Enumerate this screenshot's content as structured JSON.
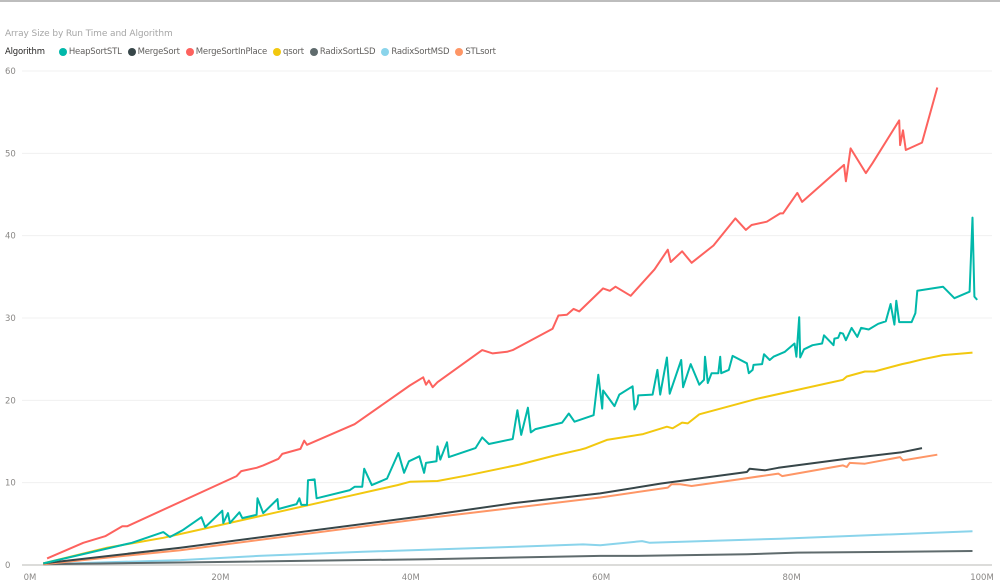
{
  "chart_data": {
    "type": "line",
    "title": "Array Size by Run Time and Algorithm",
    "legend_title": "Algorithm",
    "legend_position": "top-left",
    "xlabel": "",
    "ylabel": "",
    "x_unit": "M",
    "xlim": [
      0,
      100
    ],
    "ylim": [
      0,
      60
    ],
    "x_ticks": [
      "0M",
      "20M",
      "40M",
      "60M",
      "80M",
      "100M"
    ],
    "y_ticks": [
      "0",
      "10",
      "20",
      "30",
      "40",
      "50",
      "60"
    ],
    "grid": true,
    "series": [
      {
        "name": "HeapSortSTL",
        "color": "#01B8AA",
        "points": [
          [
            1.4,
            0.2
          ],
          [
            10.7,
            2.7
          ],
          [
            14,
            4
          ],
          [
            14.7,
            3.4
          ],
          [
            16,
            4.2
          ],
          [
            18,
            5.8
          ],
          [
            18.4,
            4.6
          ],
          [
            20.2,
            6.6
          ],
          [
            20.3,
            5.1
          ],
          [
            20.8,
            6.3
          ],
          [
            21,
            5.1
          ],
          [
            22,
            6.4
          ],
          [
            22.3,
            5.7
          ],
          [
            23.8,
            6.1
          ],
          [
            23.9,
            8.1
          ],
          [
            24.5,
            6.3
          ],
          [
            26,
            8
          ],
          [
            26.1,
            6.8
          ],
          [
            28,
            7.4
          ],
          [
            28.3,
            8.1
          ],
          [
            28.5,
            7.3
          ],
          [
            29.1,
            7.3
          ],
          [
            29.2,
            10.3
          ],
          [
            29.9,
            10.4
          ],
          [
            30.1,
            8.1
          ],
          [
            33.6,
            9.1
          ],
          [
            34.1,
            9.5
          ],
          [
            34.9,
            9.5
          ],
          [
            35.1,
            11.7
          ],
          [
            35.9,
            9.7
          ],
          [
            37.5,
            10.5
          ],
          [
            38.7,
            13.6
          ],
          [
            39.3,
            11.2
          ],
          [
            39.8,
            12.6
          ],
          [
            40.9,
            13.2
          ],
          [
            41.4,
            11.2
          ],
          [
            41.6,
            12.4
          ],
          [
            42.7,
            12.6
          ],
          [
            42.8,
            14.4
          ],
          [
            43.1,
            12.8
          ],
          [
            43.8,
            14.9
          ],
          [
            44,
            13.1
          ],
          [
            46.8,
            14.2
          ],
          [
            47.5,
            15.5
          ],
          [
            48.2,
            14.7
          ],
          [
            50.7,
            15.3
          ],
          [
            51.2,
            18.8
          ],
          [
            51.6,
            15.8
          ],
          [
            52.3,
            19.1
          ],
          [
            52.6,
            16.1
          ],
          [
            53.1,
            16.5
          ],
          [
            55.9,
            17.3
          ],
          [
            56.6,
            18.4
          ],
          [
            57.2,
            17.4
          ],
          [
            59.2,
            18.2
          ],
          [
            59.7,
            23.1
          ],
          [
            60.1,
            19
          ],
          [
            60.2,
            21.2
          ],
          [
            61.4,
            19.3
          ],
          [
            61.9,
            20.7
          ],
          [
            63.3,
            21.7
          ],
          [
            63.5,
            18.9
          ],
          [
            63.8,
            19.6
          ],
          [
            63.9,
            20.6
          ],
          [
            65.4,
            20.7
          ],
          [
            65.9,
            23.7
          ],
          [
            66.2,
            20.7
          ],
          [
            66.9,
            25.2
          ],
          [
            67.2,
            20.8
          ],
          [
            68.4,
            24.9
          ],
          [
            68.6,
            21.6
          ],
          [
            69.4,
            24.4
          ],
          [
            70.3,
            21.9
          ],
          [
            70.8,
            22.5
          ],
          [
            70.9,
            25.3
          ],
          [
            71.2,
            22.1
          ],
          [
            71.6,
            23.3
          ],
          [
            72.3,
            23.3
          ],
          [
            72.5,
            25.3
          ],
          [
            72.6,
            23.3
          ],
          [
            73.4,
            23.7
          ],
          [
            73.8,
            25.4
          ],
          [
            75.3,
            24.5
          ],
          [
            75.5,
            23.3
          ],
          [
            75.9,
            23.7
          ],
          [
            76,
            24.3
          ],
          [
            76.9,
            24.4
          ],
          [
            77.1,
            25.6
          ],
          [
            77.7,
            24.9
          ],
          [
            78.1,
            25.3
          ],
          [
            79.3,
            25.9
          ],
          [
            80.3,
            26.9
          ],
          [
            80.5,
            25.3
          ],
          [
            80.8,
            30.1
          ],
          [
            80.9,
            25.2
          ],
          [
            81.3,
            26.2
          ],
          [
            82.2,
            26.7
          ],
          [
            83.2,
            26.9
          ],
          [
            83.4,
            27.9
          ],
          [
            84.4,
            26.7
          ],
          [
            84.5,
            27.5
          ],
          [
            84.9,
            27.6
          ],
          [
            85.1,
            28.2
          ],
          [
            85.4,
            28.1
          ],
          [
            85.7,
            27.3
          ],
          [
            86.3,
            28.8
          ],
          [
            86.9,
            27.7
          ],
          [
            87.3,
            28.8
          ],
          [
            88.1,
            28.6
          ],
          [
            89.1,
            29.3
          ],
          [
            89.9,
            29.6
          ],
          [
            90.4,
            31.7
          ],
          [
            90.8,
            29.2
          ],
          [
            91,
            32.1
          ],
          [
            91.3,
            29.5
          ],
          [
            92.6,
            29.5
          ],
          [
            93,
            30.6
          ],
          [
            93.2,
            33.3
          ],
          [
            95.9,
            33.8
          ],
          [
            97.1,
            32.4
          ],
          [
            97.5,
            32.6
          ],
          [
            98.7,
            33.2
          ],
          [
            99,
            42.2
          ],
          [
            99.2,
            32.6
          ],
          [
            99.5,
            32.2
          ]
        ]
      },
      {
        "name": "MergeSort",
        "color": "#374649",
        "points": [
          [
            1.4,
            0.2
          ],
          [
            15.8,
            2.1
          ],
          [
            41.7,
            6.0
          ],
          [
            50.7,
            7.5
          ],
          [
            59.9,
            8.7
          ],
          [
            66.3,
            9.9
          ],
          [
            75.3,
            11.3
          ],
          [
            75.6,
            11.7
          ],
          [
            77.2,
            11.5
          ],
          [
            78.6,
            11.8
          ],
          [
            85.8,
            12.9
          ],
          [
            91.6,
            13.7
          ],
          [
            93.7,
            14.2
          ]
        ]
      },
      {
        "name": "MergeSortInPlace",
        "color": "#FD625E",
        "points": [
          [
            1.8,
            0.8
          ],
          [
            5.6,
            2.7
          ],
          [
            7.9,
            3.5
          ],
          [
            9.7,
            4.7
          ],
          [
            10.2,
            4.7
          ],
          [
            21.7,
            10.8
          ],
          [
            22.2,
            11.4
          ],
          [
            23.8,
            11.8
          ],
          [
            24.5,
            12.1
          ],
          [
            26.1,
            12.9
          ],
          [
            26.5,
            13.5
          ],
          [
            28.4,
            14.1
          ],
          [
            28.8,
            15.1
          ],
          [
            29.1,
            14.6
          ],
          [
            34.1,
            17.1
          ],
          [
            39.9,
            21.8
          ],
          [
            41.3,
            22.8
          ],
          [
            41.6,
            21.9
          ],
          [
            41.9,
            22.4
          ],
          [
            42.3,
            21.6
          ],
          [
            42.8,
            22.2
          ],
          [
            47.5,
            26.1
          ],
          [
            48.6,
            25.7
          ],
          [
            50.1,
            25.9
          ],
          [
            50.7,
            26.1
          ],
          [
            54.9,
            28.7
          ],
          [
            55.5,
            30.3
          ],
          [
            56.4,
            30.4
          ],
          [
            57.1,
            31.1
          ],
          [
            57.7,
            30.8
          ],
          [
            60.2,
            33.6
          ],
          [
            60.9,
            33.3
          ],
          [
            61.5,
            33.8
          ],
          [
            63.1,
            32.7
          ],
          [
            65.6,
            35.9
          ],
          [
            67,
            38.3
          ],
          [
            67.3,
            36.8
          ],
          [
            68.5,
            38.1
          ],
          [
            69.5,
            36.7
          ],
          [
            71.8,
            38.8
          ],
          [
            74.1,
            42.1
          ],
          [
            75.2,
            40.7
          ],
          [
            75.8,
            41.3
          ],
          [
            77.4,
            41.7
          ],
          [
            78.8,
            42.7
          ],
          [
            79.1,
            42.7
          ],
          [
            80.6,
            45.2
          ],
          [
            81.1,
            44.1
          ],
          [
            85.5,
            48.6
          ],
          [
            85.7,
            46.6
          ],
          [
            86.2,
            50.6
          ],
          [
            87.8,
            47.6
          ],
          [
            88.5,
            48.8
          ],
          [
            91.3,
            54.0
          ],
          [
            91.4,
            51.0
          ],
          [
            91.7,
            52.8
          ],
          [
            92,
            50.4
          ],
          [
            93.7,
            51.3
          ],
          [
            95.3,
            58.0
          ]
        ]
      },
      {
        "name": "qsort",
        "color": "#F2C80F",
        "points": [
          [
            1.4,
            0.2
          ],
          [
            8.1,
            2.1
          ],
          [
            14,
            3.3
          ],
          [
            17.5,
            4.2
          ],
          [
            25.9,
            6.4
          ],
          [
            33.6,
            8.4
          ],
          [
            38.6,
            9.7
          ],
          [
            39.9,
            10.1
          ],
          [
            42.8,
            10.2
          ],
          [
            46,
            10.9
          ],
          [
            51.4,
            12.2
          ],
          [
            55.1,
            13.3
          ],
          [
            57.8,
            14.0
          ],
          [
            58.4,
            14.2
          ],
          [
            60.6,
            15.2
          ],
          [
            64.4,
            15.9
          ],
          [
            66.9,
            16.8
          ],
          [
            67.5,
            16.6
          ],
          [
            68.5,
            17.3
          ],
          [
            69.1,
            17.2
          ],
          [
            70.3,
            18.3
          ],
          [
            76.4,
            20.2
          ],
          [
            85.4,
            22.5
          ],
          [
            85.8,
            22.9
          ],
          [
            87.7,
            23.5
          ],
          [
            88.7,
            23.5
          ],
          [
            91.6,
            24.4
          ],
          [
            92.4,
            24.6
          ],
          [
            93.8,
            25.0
          ],
          [
            95.9,
            25.5
          ],
          [
            99,
            25.8
          ]
        ]
      },
      {
        "name": "RadixSortLSD",
        "color": "#5F6B6D",
        "points": [
          [
            1.4,
            0.1
          ],
          [
            15.8,
            0.3
          ],
          [
            41.7,
            0.7
          ],
          [
            59.9,
            1.1
          ],
          [
            63.8,
            1.1
          ],
          [
            75.3,
            1.3
          ],
          [
            80.6,
            1.5
          ],
          [
            91.6,
            1.6
          ],
          [
            99,
            1.7
          ]
        ]
      },
      {
        "name": "RadixSortMSD",
        "color": "#8AD4EB",
        "points": [
          [
            1.4,
            0.1
          ],
          [
            15.8,
            0.6
          ],
          [
            24,
            1.1
          ],
          [
            35,
            1.6
          ],
          [
            50.7,
            2.2
          ],
          [
            58.1,
            2.5
          ],
          [
            59.9,
            2.4
          ],
          [
            64.3,
            2.9
          ],
          [
            65.1,
            2.7
          ],
          [
            78.8,
            3.2
          ],
          [
            99,
            4.1
          ]
        ]
      },
      {
        "name": "STLsort",
        "color": "#FE9666",
        "points": [
          [
            1.4,
            0.1
          ],
          [
            15.8,
            1.8
          ],
          [
            41.7,
            5.7
          ],
          [
            59.9,
            8.2
          ],
          [
            67,
            9.4
          ],
          [
            67.4,
            9.8
          ],
          [
            68.3,
            9.8
          ],
          [
            69.5,
            9.6
          ],
          [
            73.8,
            10.3
          ],
          [
            78.6,
            11.1
          ],
          [
            79,
            10.8
          ],
          [
            85.4,
            12.1
          ],
          [
            85.8,
            11.9
          ],
          [
            86.1,
            12.4
          ],
          [
            87.7,
            12.3
          ],
          [
            91.4,
            13.1
          ],
          [
            91.7,
            12.7
          ],
          [
            95.3,
            13.4
          ]
        ]
      }
    ]
  }
}
